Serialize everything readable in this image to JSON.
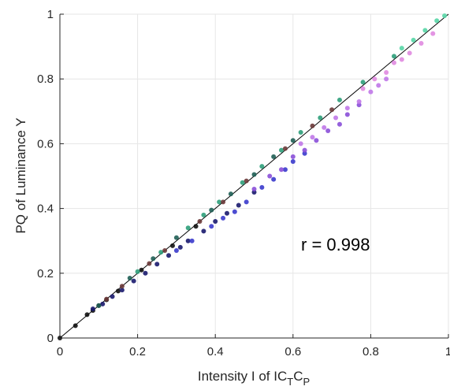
{
  "chart_data": {
    "type": "scatter",
    "xlabel": "Intensity I of IC",
    "xlabel_sub1": "T",
    "xlabel_mid": "C",
    "xlabel_sub2": "P",
    "ylabel": "PQ of Luminance Y",
    "xlim": [
      0,
      1
    ],
    "ylim": [
      0,
      1
    ],
    "xticks": [
      0,
      0.2,
      0.4,
      0.6,
      0.8,
      1
    ],
    "yticks": [
      0,
      0.2,
      0.4,
      0.6,
      0.8,
      1
    ],
    "xtick_labels": [
      "0",
      "0.2",
      "0.4",
      "0.6",
      "0.8",
      "1"
    ],
    "ytick_labels": [
      "0",
      "0.2",
      "0.4",
      "0.6",
      "0.8",
      "1"
    ],
    "grid": true,
    "annotation": "r = 0.998",
    "reference_line": {
      "from": [
        0,
        0
      ],
      "to": [
        1,
        1
      ],
      "color": "#000000"
    },
    "colors": {
      "black": "#111111",
      "navy": "#1a1a6e",
      "blue": "#3a3acc",
      "violet": "#8a4fd8",
      "magenta": "#c078e8",
      "pink": "#e08ae0",
      "teal": "#2e9e7a",
      "mint": "#58d6a6",
      "dark_teal": "#1f5f55",
      "brown": "#6b3a3a",
      "gray": "#707070"
    },
    "series": [
      {
        "color": "#111111",
        "points": [
          [
            0.0,
            0.0
          ],
          [
            0.04,
            0.038
          ],
          [
            0.07,
            0.072
          ],
          [
            0.085,
            0.085
          ],
          [
            0.1,
            0.1
          ],
          [
            0.12,
            0.118
          ],
          [
            0.15,
            0.145
          ],
          [
            0.21,
            0.21
          ],
          [
            0.29,
            0.285
          ],
          [
            0.35,
            0.345
          ]
        ]
      },
      {
        "color": "#1a1a6e",
        "points": [
          [
            0.085,
            0.09
          ],
          [
            0.11,
            0.105
          ],
          [
            0.135,
            0.128
          ],
          [
            0.16,
            0.148
          ],
          [
            0.19,
            0.176
          ],
          [
            0.22,
            0.2
          ],
          [
            0.25,
            0.228
          ],
          [
            0.28,
            0.255
          ],
          [
            0.31,
            0.28
          ],
          [
            0.33,
            0.3
          ],
          [
            0.37,
            0.33
          ],
          [
            0.4,
            0.36
          ],
          [
            0.43,
            0.385
          ],
          [
            0.46,
            0.41
          ],
          [
            0.5,
            0.45
          ]
        ]
      },
      {
        "color": "#3a3acc",
        "points": [
          [
            0.3,
            0.27
          ],
          [
            0.34,
            0.3
          ],
          [
            0.39,
            0.345
          ],
          [
            0.42,
            0.37
          ],
          [
            0.45,
            0.39
          ],
          [
            0.48,
            0.42
          ],
          [
            0.52,
            0.465
          ],
          [
            0.55,
            0.49
          ],
          [
            0.58,
            0.52
          ],
          [
            0.6,
            0.545
          ],
          [
            0.63,
            0.57
          ]
        ]
      },
      {
        "color": "#8a4fd8",
        "points": [
          [
            0.5,
            0.46
          ],
          [
            0.54,
            0.5
          ],
          [
            0.57,
            0.52
          ],
          [
            0.6,
            0.56
          ],
          [
            0.63,
            0.58
          ],
          [
            0.66,
            0.61
          ],
          [
            0.69,
            0.64
          ],
          [
            0.72,
            0.66
          ],
          [
            0.74,
            0.69
          ],
          [
            0.77,
            0.72
          ]
        ]
      },
      {
        "color": "#c078e8",
        "points": [
          [
            0.62,
            0.6
          ],
          [
            0.65,
            0.62
          ],
          [
            0.68,
            0.65
          ],
          [
            0.71,
            0.68
          ],
          [
            0.74,
            0.71
          ],
          [
            0.77,
            0.73
          ],
          [
            0.8,
            0.76
          ],
          [
            0.82,
            0.78
          ],
          [
            0.84,
            0.8
          ]
        ]
      },
      {
        "color": "#e08ae0",
        "points": [
          [
            0.78,
            0.77
          ],
          [
            0.81,
            0.8
          ],
          [
            0.84,
            0.82
          ],
          [
            0.86,
            0.85
          ],
          [
            0.88,
            0.86
          ],
          [
            0.9,
            0.88
          ],
          [
            0.93,
            0.91
          ],
          [
            0.96,
            0.94
          ]
        ]
      },
      {
        "color": "#2e9e7a",
        "points": [
          [
            0.2,
            0.205
          ],
          [
            0.26,
            0.265
          ],
          [
            0.33,
            0.34
          ],
          [
            0.37,
            0.38
          ],
          [
            0.41,
            0.42
          ],
          [
            0.47,
            0.48
          ],
          [
            0.52,
            0.53
          ],
          [
            0.57,
            0.58
          ],
          [
            0.62,
            0.635
          ],
          [
            0.67,
            0.68
          ],
          [
            0.72,
            0.735
          ],
          [
            0.78,
            0.79
          ],
          [
            0.86,
            0.87
          ]
        ]
      },
      {
        "color": "#58d6a6",
        "points": [
          [
            0.88,
            0.895
          ],
          [
            0.91,
            0.92
          ],
          [
            0.94,
            0.95
          ],
          [
            0.97,
            0.98
          ],
          [
            0.99,
            0.995
          ]
        ]
      },
      {
        "color": "#1f5f55",
        "points": [
          [
            0.1,
            0.1
          ],
          [
            0.18,
            0.185
          ],
          [
            0.24,
            0.245
          ],
          [
            0.3,
            0.31
          ],
          [
            0.39,
            0.395
          ],
          [
            0.44,
            0.445
          ],
          [
            0.5,
            0.505
          ],
          [
            0.55,
            0.56
          ],
          [
            0.6,
            0.61
          ]
        ]
      },
      {
        "color": "#6b3a3a",
        "points": [
          [
            0.12,
            0.12
          ],
          [
            0.16,
            0.16
          ],
          [
            0.23,
            0.23
          ],
          [
            0.27,
            0.27
          ],
          [
            0.36,
            0.36
          ],
          [
            0.42,
            0.42
          ],
          [
            0.48,
            0.485
          ],
          [
            0.58,
            0.585
          ],
          [
            0.65,
            0.655
          ],
          [
            0.7,
            0.705
          ]
        ]
      }
    ]
  }
}
